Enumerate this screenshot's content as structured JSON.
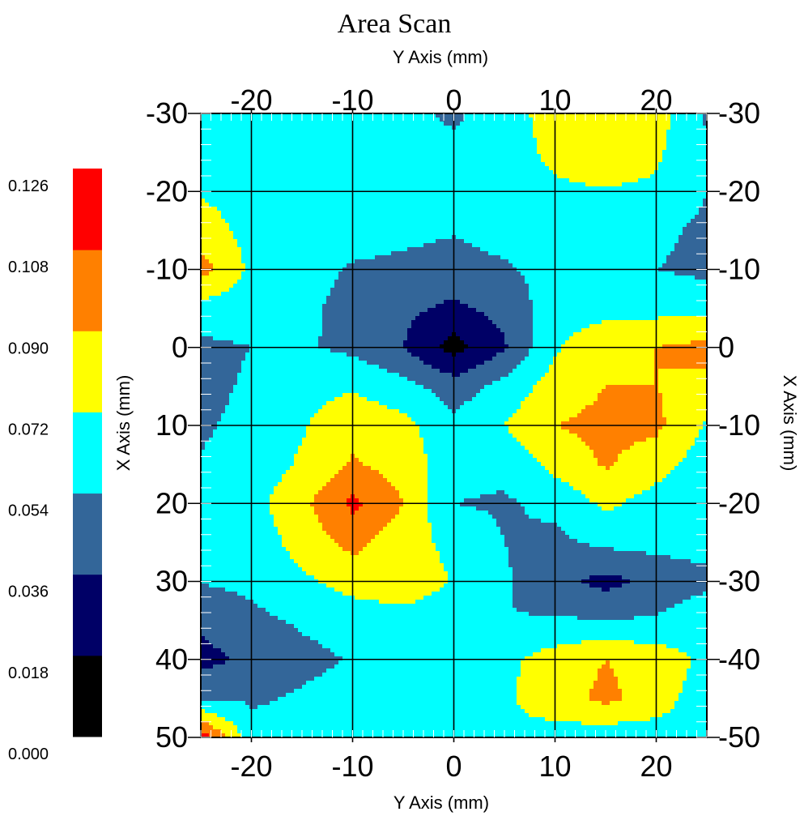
{
  "chart_data": {
    "type": "heatmap",
    "title": "Area Scan",
    "top_axis_label": "Y Axis (mm)",
    "bottom_axis_label": "Y Axis (mm)",
    "left_axis_label": "X Axis (mm)",
    "right_axis_label": "X Axis (mm)",
    "y_axis_range": [
      -25,
      25
    ],
    "x_axis_range": [
      -30,
      50
    ],
    "y_axis_ticks": [
      -20,
      -10,
      0,
      10,
      20
    ],
    "x_axis_ticks": [
      -30,
      -20,
      -10,
      0,
      10,
      20,
      30,
      40,
      50
    ],
    "y_axis_tick_labels": [
      "-20",
      "-10",
      "0",
      "10",
      "20"
    ],
    "x_axis_tick_labels_left": [
      "-30",
      "-20",
      "-10",
      "0",
      "10",
      "20",
      "30",
      "40",
      "50"
    ],
    "x_axis_tick_labels_right": [
      "-30",
      "-20",
      "-10",
      "0",
      "-10",
      "-20",
      "-30",
      "-40",
      "-50"
    ],
    "grid": true,
    "legend_placement": "left",
    "colorbar": {
      "levels": [
        0.0,
        0.018,
        0.036,
        0.054,
        0.072,
        0.09,
        0.108,
        0.126
      ],
      "labels": [
        "0.000",
        "0.018",
        "0.036",
        "0.054",
        "0.072",
        "0.090",
        "0.108",
        "0.126"
      ],
      "colors": [
        "#000000",
        "#000066",
        "#336699",
        "#00ffff",
        "#ffff00",
        "#ff8000",
        "#ff0000"
      ]
    },
    "grid_y": [
      -25,
      -20,
      -15,
      -10,
      -5,
      0,
      5,
      10,
      15,
      20,
      25
    ],
    "grid_x": [
      -30,
      -25,
      -20,
      -15,
      -10,
      -5,
      0,
      5,
      10,
      15,
      20,
      25,
      30,
      35,
      40,
      45,
      50
    ],
    "values": [
      [
        0.06,
        0.066,
        0.066,
        0.063,
        0.06,
        0.05,
        0.066,
        0.078,
        0.085,
        0.08,
        0.05
      ],
      [
        0.066,
        0.066,
        0.066,
        0.063,
        0.06,
        0.06,
        0.066,
        0.075,
        0.08,
        0.074,
        0.06
      ],
      [
        0.07,
        0.066,
        0.066,
        0.064,
        0.062,
        0.064,
        0.066,
        0.07,
        0.071,
        0.07,
        0.054
      ],
      [
        0.08,
        0.066,
        0.065,
        0.062,
        0.058,
        0.055,
        0.06,
        0.068,
        0.066,
        0.058,
        0.05
      ],
      [
        0.098,
        0.068,
        0.062,
        0.052,
        0.05,
        0.048,
        0.052,
        0.06,
        0.058,
        0.054,
        0.05
      ],
      [
        0.064,
        0.062,
        0.058,
        0.048,
        0.04,
        0.032,
        0.042,
        0.064,
        0.066,
        0.066,
        0.066
      ],
      [
        0.05,
        0.054,
        0.056,
        0.05,
        0.036,
        0.01,
        0.034,
        0.07,
        0.085,
        0.09,
        0.095
      ],
      [
        0.05,
        0.056,
        0.066,
        0.07,
        0.06,
        0.045,
        0.06,
        0.08,
        0.09,
        0.09,
        0.085
      ],
      [
        0.052,
        0.058,
        0.07,
        0.085,
        0.078,
        0.058,
        0.072,
        0.09,
        0.095,
        0.094,
        0.07
      ],
      [
        0.055,
        0.06,
        0.075,
        0.092,
        0.083,
        0.06,
        0.058,
        0.078,
        0.092,
        0.08,
        0.062
      ],
      [
        0.055,
        0.066,
        0.085,
        0.112,
        0.09,
        0.054,
        0.052,
        0.058,
        0.076,
        0.064,
        0.06
      ],
      [
        0.055,
        0.06,
        0.08,
        0.095,
        0.08,
        0.066,
        0.054,
        0.05,
        0.058,
        0.06,
        0.06
      ],
      [
        0.055,
        0.058,
        0.068,
        0.08,
        0.09,
        0.07,
        0.056,
        0.042,
        0.03,
        0.042,
        0.05
      ],
      [
        0.04,
        0.05,
        0.056,
        0.06,
        0.06,
        0.056,
        0.054,
        0.056,
        0.054,
        0.056,
        0.066
      ],
      [
        0.03,
        0.04,
        0.05,
        0.055,
        0.058,
        0.056,
        0.068,
        0.08,
        0.09,
        0.082,
        0.068
      ],
      [
        0.052,
        0.052,
        0.056,
        0.06,
        0.06,
        0.056,
        0.07,
        0.08,
        0.095,
        0.08,
        0.062
      ],
      [
        0.12,
        0.06,
        0.058,
        0.06,
        0.06,
        0.06,
        0.07,
        0.066,
        0.06,
        0.064,
        0.066
      ]
    ]
  }
}
